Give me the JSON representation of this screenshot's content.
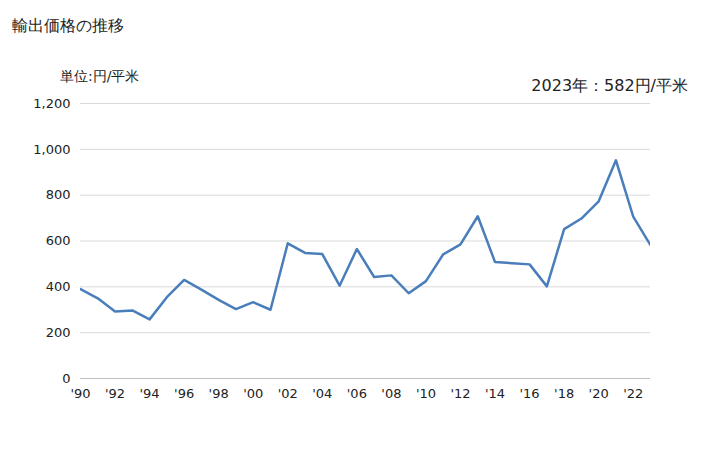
{
  "chart_data": {
    "type": "line",
    "title": "輸出価格の推移",
    "y_label": "単位:円/平米",
    "annotations": [
      "2023年：582円/平米"
    ],
    "x": [
      1990,
      1991,
      1992,
      1993,
      1994,
      1995,
      1996,
      1997,
      1998,
      1999,
      2000,
      2001,
      2002,
      2003,
      2004,
      2005,
      2006,
      2007,
      2008,
      2009,
      2010,
      2011,
      2012,
      2013,
      2014,
      2015,
      2016,
      2017,
      2018,
      2019,
      2020,
      2021,
      2022,
      2023
    ],
    "values": [
      390,
      350,
      292,
      297,
      258,
      355,
      430,
      388,
      343,
      303,
      333,
      300,
      590,
      548,
      543,
      405,
      565,
      443,
      450,
      372,
      425,
      542,
      585,
      708,
      508,
      503,
      498,
      402,
      652,
      698,
      773,
      952,
      706,
      582
    ],
    "color": "#4a7ebb",
    "xlim": [
      1990,
      2023
    ],
    "xticks": [
      {
        "value": 1990,
        "label": "'90"
      },
      {
        "value": 1992,
        "label": "'92"
      },
      {
        "value": 1994,
        "label": "'94"
      },
      {
        "value": 1996,
        "label": "'96"
      },
      {
        "value": 1998,
        "label": "'98"
      },
      {
        "value": 2000,
        "label": "'00"
      },
      {
        "value": 2002,
        "label": "'02"
      },
      {
        "value": 2004,
        "label": "'04"
      },
      {
        "value": 2006,
        "label": "'06"
      },
      {
        "value": 2008,
        "label": "'08"
      },
      {
        "value": 2010,
        "label": "'10"
      },
      {
        "value": 2012,
        "label": "'12"
      },
      {
        "value": 2014,
        "label": "'14"
      },
      {
        "value": 2016,
        "label": "'16"
      },
      {
        "value": 2018,
        "label": "'18"
      },
      {
        "value": 2020,
        "label": "'20"
      },
      {
        "value": 2022,
        "label": "'22"
      }
    ],
    "ylim": [
      0,
      1200
    ],
    "yticks": [
      0,
      200,
      400,
      600,
      800,
      {
        "value": 1000,
        "label": "1,000"
      },
      {
        "value": 1200,
        "label": "1,200"
      }
    ],
    "grid": true
  }
}
